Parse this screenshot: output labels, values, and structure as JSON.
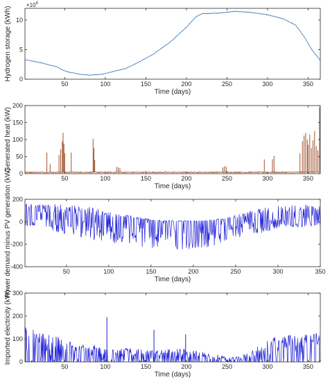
{
  "chart_data": [
    {
      "type": "line",
      "xlabel": "Time (days)",
      "ylabel": "Hydrogen storage (kWh)",
      "y_exponent_label": "×10^4",
      "xlim": [
        1,
        365
      ],
      "ylim": [
        0,
        12
      ],
      "xticks": [
        50,
        100,
        150,
        200,
        250,
        300,
        350
      ],
      "yticks": [
        0,
        5,
        10
      ],
      "series": [
        {
          "color": "#4a7fb8",
          "x": [
            1,
            20,
            40,
            48,
            55,
            70,
            80,
            95,
            110,
            125,
            140,
            160,
            180,
            200,
            212,
            220,
            240,
            260,
            280,
            300,
            320,
            335,
            345,
            355,
            365
          ],
          "y": [
            3.3,
            2.8,
            2.1,
            1.5,
            1.2,
            0.8,
            0.7,
            0.8,
            1.3,
            1.8,
            2.8,
            4.3,
            6.3,
            8.8,
            10.6,
            11.1,
            11.2,
            11.5,
            11.3,
            10.9,
            10.2,
            9.1,
            7.2,
            4.9,
            3.2
          ]
        }
      ]
    },
    {
      "type": "line",
      "xlabel": "Time (days)",
      "ylabel": "Generated heat (kW)",
      "xlim": [
        1,
        365
      ],
      "ylim": [
        0,
        200
      ],
      "xticks": [
        50,
        100,
        150,
        200,
        250,
        300,
        350
      ],
      "yticks": [
        0,
        50,
        100,
        150,
        200
      ],
      "baseline": 4,
      "series": [
        {
          "color": "#a0522d",
          "spikes_x": [
            28,
            32,
            43,
            45,
            47,
            48,
            49,
            50,
            58,
            85,
            86,
            87,
            114,
            116,
            118,
            245,
            247,
            249,
            296,
            306,
            308,
            340,
            343,
            345,
            347,
            349,
            350,
            352,
            354,
            356,
            358,
            360,
            362,
            364
          ],
          "spikes_y": [
            62,
            28,
            55,
            72,
            95,
            120,
            88,
            60,
            62,
            102,
            75,
            40,
            20,
            18,
            17,
            18,
            22,
            20,
            42,
            42,
            52,
            60,
            95,
            112,
            120,
            100,
            85,
            115,
            75,
            98,
            125,
            80,
            68,
            195
          ]
        }
      ]
    },
    {
      "type": "line",
      "xlabel": "Time (days)",
      "ylabel": "Power demand minus PV generation (kW)",
      "xlim": [
        1,
        350
      ],
      "ylim": [
        -400,
        200
      ],
      "xticks": [
        50,
        100,
        150,
        200,
        250,
        300,
        350
      ],
      "yticks": [
        -400,
        -200,
        0,
        200
      ],
      "series": [
        {
          "color": "#1c1cd6",
          "envelope_x": [
            1,
            25,
            50,
            75,
            100,
            125,
            150,
            175,
            200,
            225,
            250,
            275,
            300,
            325,
            350
          ],
          "envelope_max": [
            165,
            165,
            150,
            140,
            90,
            60,
            20,
            10,
            10,
            20,
            60,
            110,
            150,
            160,
            165
          ],
          "envelope_min": [
            -40,
            -70,
            -110,
            -160,
            -190,
            -220,
            -240,
            -250,
            -240,
            -220,
            -160,
            -110,
            -60,
            -50,
            -40
          ]
        }
      ]
    },
    {
      "type": "line",
      "xlabel": "Time (days)",
      "ylabel": "Imported electricity (kW)",
      "xlim": [
        1,
        365
      ],
      "ylim": [
        0,
        300
      ],
      "xticks": [
        50,
        100,
        150,
        200,
        250,
        300,
        350
      ],
      "yticks": [
        0,
        100,
        200,
        300
      ],
      "series": [
        {
          "color": "#1c1cd6",
          "envelope_x": [
            1,
            20,
            40,
            60,
            80,
            100,
            130,
            160,
            190,
            220,
            240,
            260,
            280,
            300,
            320,
            340,
            365
          ],
          "envelope_max": [
            160,
            130,
            110,
            90,
            80,
            60,
            60,
            50,
            60,
            45,
            30,
            20,
            45,
            105,
            115,
            125,
            130
          ],
          "envelope_min": [
            0,
            0,
            0,
            0,
            0,
            0,
            0,
            0,
            0,
            0,
            0,
            0,
            0,
            0,
            0,
            0,
            0
          ],
          "spikes_x": [
            2,
            102,
            160,
            199
          ],
          "spikes_y": [
            140,
            195,
            140,
            120
          ]
        }
      ]
    }
  ]
}
